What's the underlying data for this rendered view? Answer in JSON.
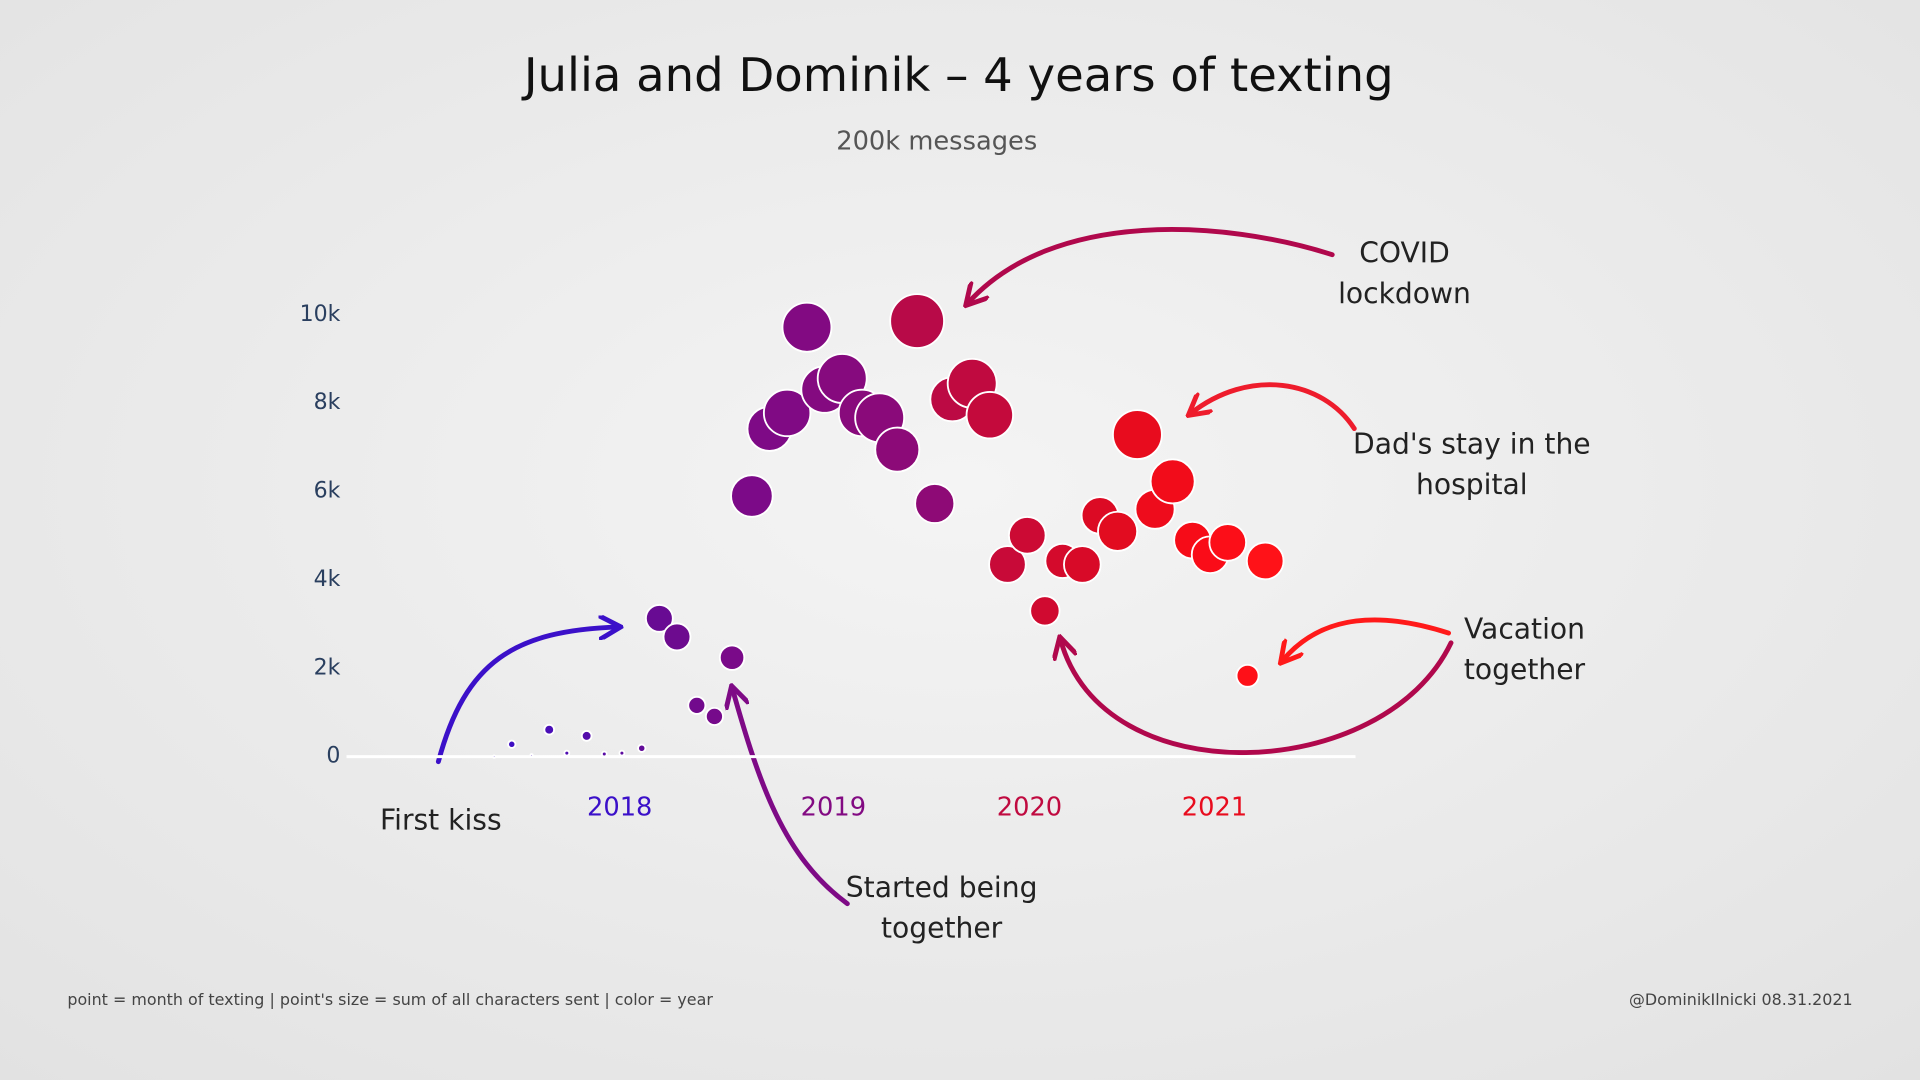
{
  "chart_data": {
    "type": "bubble",
    "title": "Julia and Dominik – 4 years of texting",
    "subtitle": "200k messages",
    "x": [
      2018.17,
      2018.25,
      2018.34,
      2018.42,
      2018.5,
      2018.59,
      2018.67,
      2018.75,
      2018.84,
      2018.92,
      2019.0,
      2019.09,
      2019.17,
      2019.25,
      2019.34,
      2019.42,
      2019.5,
      2019.59,
      2019.67,
      2019.75,
      2019.84,
      2019.92,
      2020.0,
      2020.09,
      2020.17,
      2020.25,
      2020.34,
      2020.42,
      2020.5,
      2020.59,
      2020.67,
      2020.75,
      2020.84,
      2020.92,
      2021.0,
      2021.09,
      2021.17,
      2021.25,
      2021.34,
      2021.42,
      2021.5,
      2021.59,
      2021.67
    ],
    "values": [
      0,
      280,
      30,
      610,
      80,
      470,
      60,
      80,
      190,
      3130,
      2710,
      1160,
      910,
      2240,
      5900,
      7420,
      7780,
      9720,
      8310,
      8560,
      7780,
      7670,
      6950,
      9860,
      5730,
      8090,
      8450,
      7730,
      4350,
      5010,
      3300,
      4430,
      4350,
      5460,
      5100,
      7290,
      5600,
      6230,
      4900,
      4570,
      4850,
      1830,
      4430
    ],
    "sizes": [
      1,
      9,
      1,
      16,
      4,
      16,
      4,
      4,
      9,
      121,
      121,
      49,
      49,
      100,
      289,
      324,
      361,
      400,
      361,
      400,
      361,
      400,
      324,
      484,
      256,
      324,
      400,
      361,
      225,
      225,
      144,
      196,
      225,
      225,
      256,
      400,
      256,
      324,
      225,
      225,
      225,
      81,
      225
    ],
    "colors": [
      "#3b10c9",
      "#400fc3",
      "#450fbd",
      "#4a0eb7",
      "#4f0eb1",
      "#540dab",
      "#590da5",
      "#5e0c9f",
      "#630c99",
      "#680b93",
      "#6d0b8f",
      "#720a8d",
      "#760a8b",
      "#7a0a89",
      "#7c0a88",
      "#7e0a86",
      "#800a84",
      "#820a82",
      "#840a80",
      "#860a7e",
      "#880a7c",
      "#8a0a7a",
      "#8c0a78",
      "#b80a48",
      "#8e0a76",
      "#bc0a44",
      "#c00a40",
      "#c40a3c",
      "#c80a38",
      "#cc0a34",
      "#d00a30",
      "#d40a2c",
      "#d80a28",
      "#dc0a24",
      "#e20c20",
      "#e80c1e",
      "#ee0c1c",
      "#f20c1a",
      "#f60c18",
      "#fa0c18",
      "#fc0e18",
      "#fe1018",
      "#ff1218"
    ],
    "xlim": [
      2017.5,
      2022.08
    ],
    "xticks": [
      {
        "value": 2018.74,
        "label": "2018"
      },
      {
        "value": 2019.71,
        "label": "2019"
      },
      {
        "value": 2020.6,
        "label": "2020"
      },
      {
        "value": 2021.44,
        "label": "2021"
      }
    ],
    "xtick_colors": [
      "#3b10c9",
      "#820a82",
      "#c00a40",
      "#e80c1e"
    ],
    "ylim": [
      -1000,
      12000
    ],
    "yticks": [
      0,
      {
        "value": 2000,
        "label": "2k"
      },
      {
        "value": 4000,
        "label": "4k"
      },
      {
        "value": 6000,
        "label": "6k"
      },
      {
        "value": 8000,
        "label": "8k"
      },
      {
        "value": 10000,
        "label": "10k"
      }
    ],
    "grid": false,
    "zeroline": true,
    "annotations": [
      {
        "lines": [
          "COVID",
          "lockdown"
        ]
      },
      {
        "lines": [
          "Dad's stay in the",
          "hospital"
        ]
      },
      {
        "lines": [
          "Vacation",
          "together"
        ]
      },
      {
        "lines": [
          "First kiss"
        ]
      },
      {
        "lines": [
          "Started being",
          "together"
        ]
      }
    ],
    "footnote": "point = month of texting | point's size = sum of all characters sent | color = year",
    "credit": "@DominikIlnicki 08.31.2021"
  }
}
